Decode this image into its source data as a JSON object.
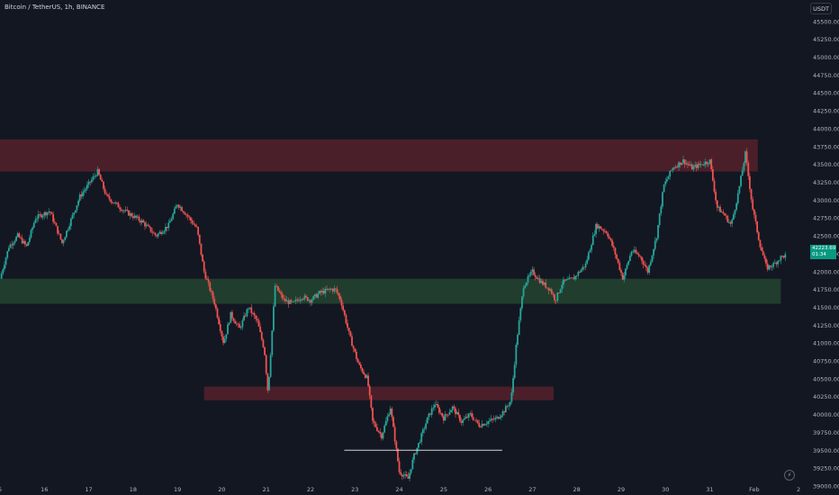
{
  "header": {
    "symbol": "Bitcoin / TetherUS, 1h, BINANCE",
    "currency": "USDT"
  },
  "last_price": {
    "value": "42223.69",
    "countdown": "01:34"
  },
  "controls": {
    "settings_icon": "lightning-icon"
  },
  "colors": {
    "background": "#131722",
    "up": "#26a69a",
    "down": "#ef5350",
    "resistance_zone": "#f23645",
    "support_zone": "#4caf50",
    "axis_text": "#b2b5be"
  },
  "chart_data": {
    "type": "candlestick",
    "title": "Bitcoin / TetherUS, 1h, BINANCE",
    "ylim": [
      39000,
      45800
    ],
    "y_ticks": [
      "45500.00",
      "45250.00",
      "45000.00",
      "44750.00",
      "44500.00",
      "44250.00",
      "44000.00",
      "43750.00",
      "43500.00",
      "43250.00",
      "43000.00",
      "42750.00",
      "42500.00",
      "42250.00",
      "42000.00",
      "41750.00",
      "41500.00",
      "41250.00",
      "41000.00",
      "40750.00",
      "40500.00",
      "40250.00",
      "40000.00",
      "39750.00",
      "39500.00",
      "39250.00",
      "39000.00"
    ],
    "x_ticks": [
      "5",
      "16",
      "17",
      "18",
      "19",
      "20",
      "21",
      "22",
      "23",
      "24",
      "25",
      "26",
      "27",
      "28",
      "29",
      "30",
      "31",
      "Feb",
      "2"
    ],
    "grid": false,
    "price_path": [
      [
        0,
        41900
      ],
      [
        0.5,
        42350
      ],
      [
        1,
        42500
      ],
      [
        1.5,
        42350
      ],
      [
        2,
        42750
      ],
      [
        2.8,
        42850
      ],
      [
        3.5,
        42400
      ],
      [
        4.5,
        43050
      ],
      [
        5.5,
        43400
      ],
      [
        6,
        43050
      ],
      [
        7,
        42850
      ],
      [
        8,
        42700
      ],
      [
        8.8,
        42500
      ],
      [
        9.5,
        42650
      ],
      [
        10,
        42950
      ],
      [
        10.5,
        42800
      ],
      [
        11.1,
        42600
      ],
      [
        11.5,
        42000
      ],
      [
        12.1,
        41550
      ],
      [
        12.6,
        41000
      ],
      [
        13,
        41400
      ],
      [
        13.5,
        41200
      ],
      [
        14,
        41500
      ],
      [
        14.5,
        41300
      ],
      [
        14.9,
        40900
      ],
      [
        15.1,
        40300
      ],
      [
        15.5,
        41800
      ],
      [
        16,
        41600
      ],
      [
        16.5,
        41550
      ],
      [
        17,
        41650
      ],
      [
        17.5,
        41600
      ],
      [
        18,
        41700
      ],
      [
        18.6,
        41750
      ],
      [
        18.9,
        41750
      ],
      [
        19.2,
        41600
      ],
      [
        19.7,
        41100
      ],
      [
        20.2,
        40700
      ],
      [
        20.7,
        40500
      ],
      [
        21,
        39900
      ],
      [
        21.5,
        39700
      ],
      [
        22,
        40100
      ],
      [
        22.5,
        39200
      ],
      [
        23,
        39100
      ],
      [
        23.3,
        39400
      ],
      [
        23.6,
        39600
      ],
      [
        24.1,
        39950
      ],
      [
        24.5,
        40150
      ],
      [
        25,
        39950
      ],
      [
        25.5,
        40100
      ],
      [
        26,
        39900
      ],
      [
        26.5,
        40000
      ],
      [
        27,
        39850
      ],
      [
        27.5,
        39900
      ],
      [
        28,
        39950
      ],
      [
        28.4,
        40050
      ],
      [
        28.8,
        40200
      ],
      [
        29.1,
        41000
      ],
      [
        29.5,
        41800
      ],
      [
        30,
        42000
      ],
      [
        30.5,
        41850
      ],
      [
        31,
        41750
      ],
      [
        31.3,
        41600
      ],
      [
        31.7,
        41850
      ],
      [
        32.3,
        41900
      ],
      [
        33,
        42100
      ],
      [
        33.6,
        42650
      ],
      [
        34.2,
        42550
      ],
      [
        34.6,
        42300
      ],
      [
        35.1,
        41900
      ],
      [
        35.6,
        42300
      ],
      [
        36.1,
        42200
      ],
      [
        36.5,
        42000
      ],
      [
        37,
        42500
      ],
      [
        37.4,
        43200
      ],
      [
        37.9,
        43450
      ],
      [
        38.5,
        43550
      ],
      [
        39,
        43450
      ],
      [
        39.5,
        43500
      ],
      [
        40,
        43550
      ],
      [
        40.4,
        42900
      ],
      [
        40.8,
        42800
      ],
      [
        41.2,
        42650
      ],
      [
        41.6,
        43100
      ],
      [
        42,
        43650
      ],
      [
        42.4,
        42900
      ],
      [
        42.8,
        42400
      ],
      [
        43.2,
        42050
      ],
      [
        43.6,
        42100
      ],
      [
        44,
        42200
      ],
      [
        44.3,
        42230
      ]
    ],
    "zones": [
      {
        "kind": "resistance",
        "y_low": 43400,
        "y_high": 43850,
        "x_start": 0,
        "x_end": 42.7
      },
      {
        "kind": "support",
        "y_low": 41550,
        "y_high": 41900,
        "x_start": 0,
        "x_end": 44
      },
      {
        "kind": "resistance",
        "y_low": 40200,
        "y_high": 40390,
        "x_start": 11.5,
        "x_end": 31.2
      }
    ],
    "lines": [
      {
        "kind": "support-line",
        "y": 39500,
        "x_start": 19.4,
        "x_end": 28.3
      }
    ]
  }
}
